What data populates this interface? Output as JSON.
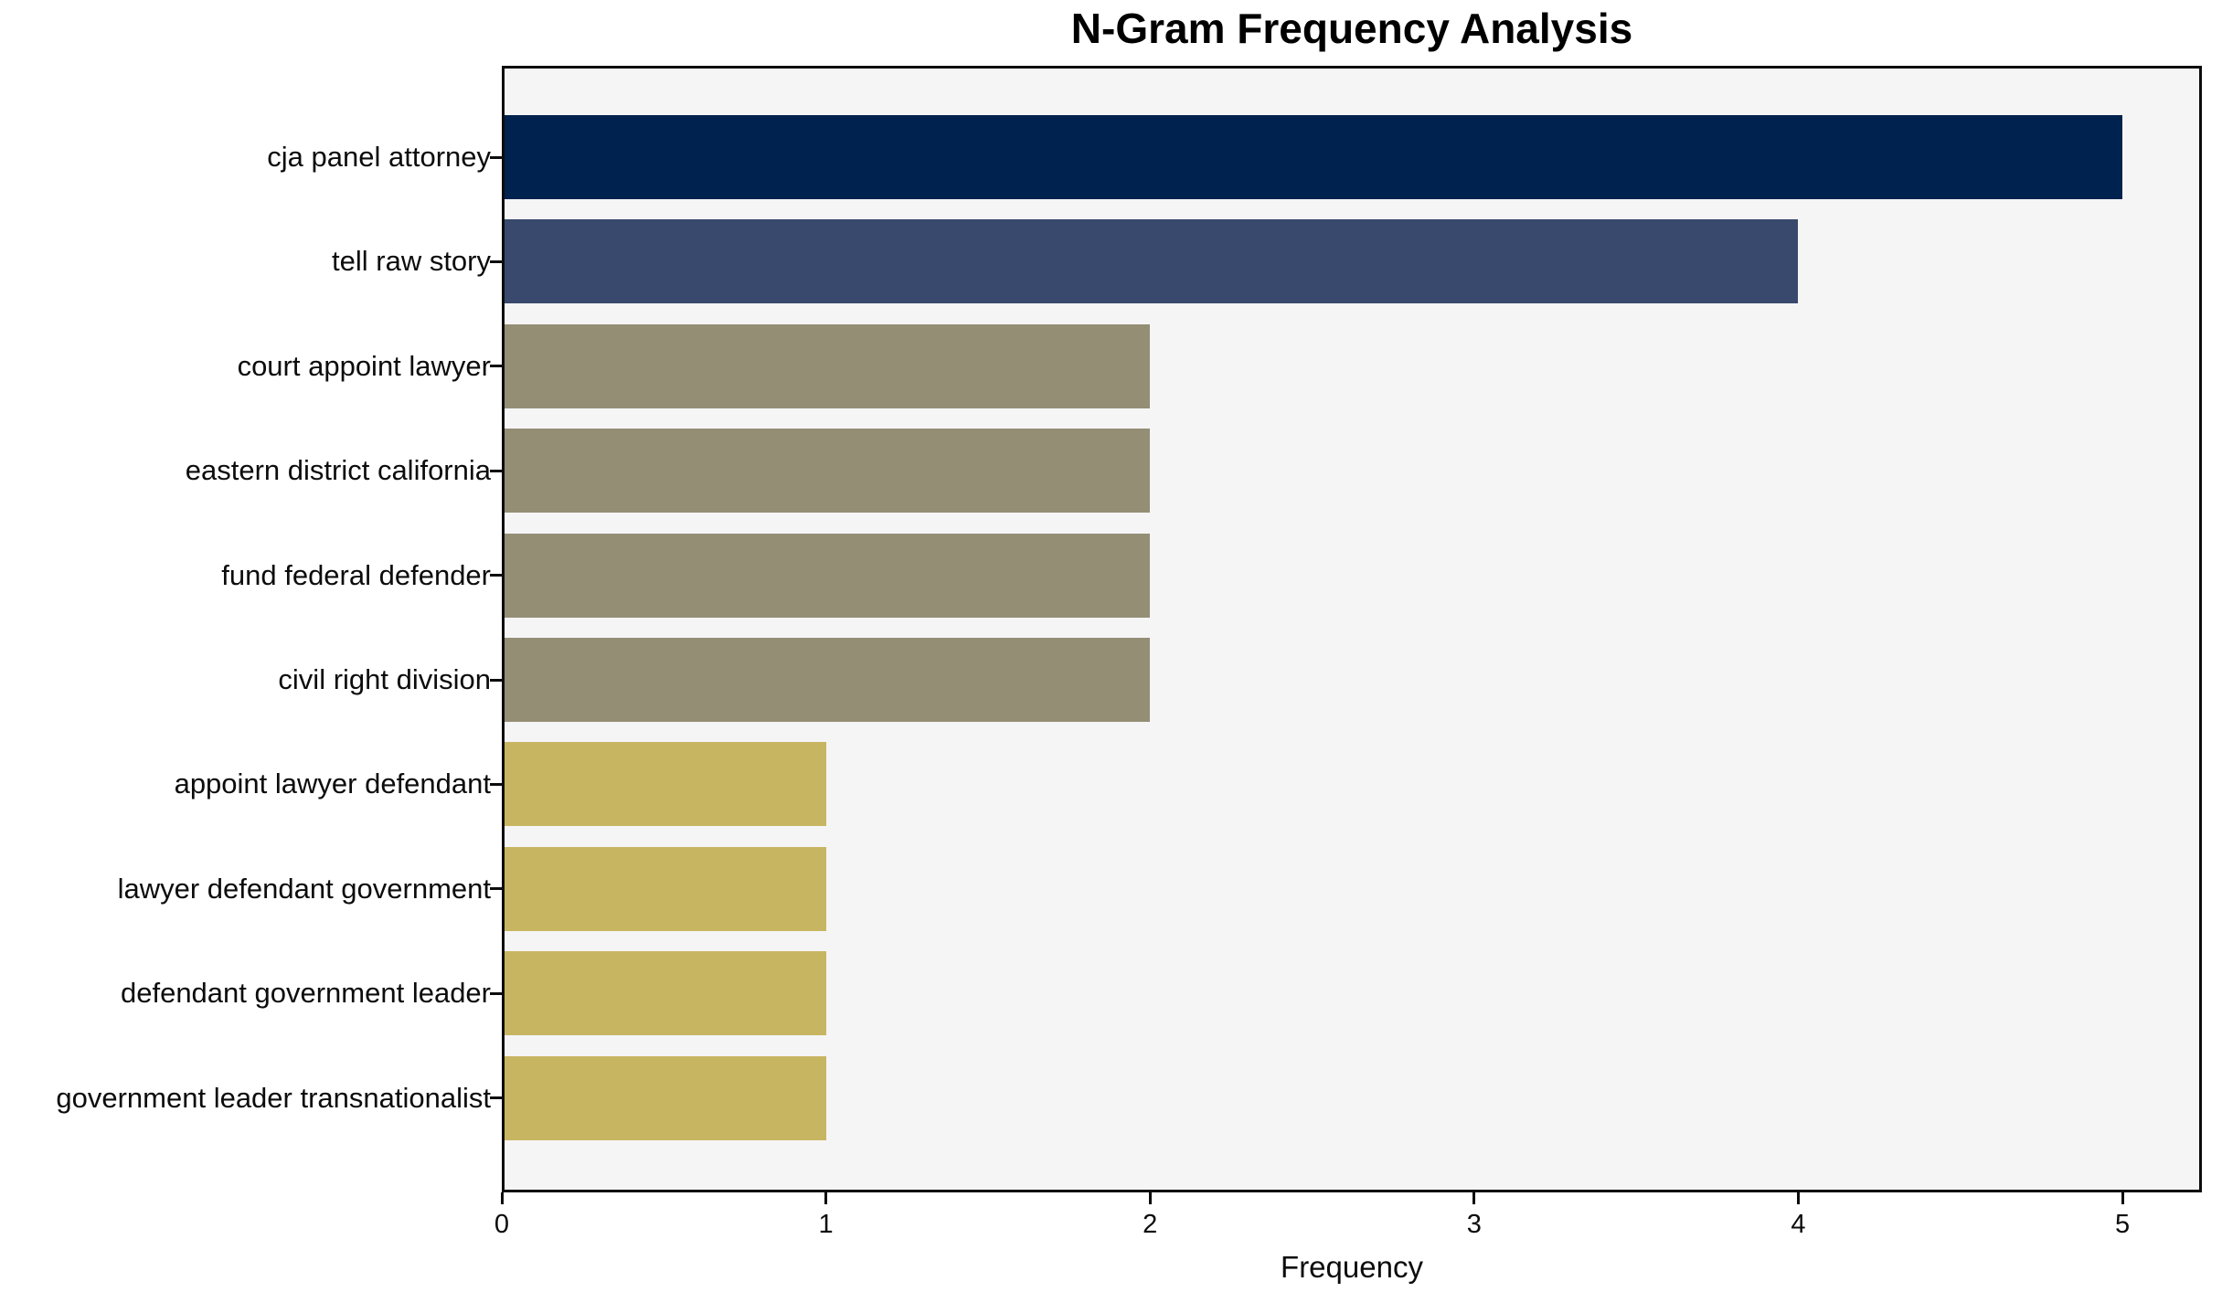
{
  "chart_data": {
    "type": "bar",
    "orientation": "horizontal",
    "title": "N-Gram Frequency Analysis",
    "xlabel": "Frequency",
    "ylabel": "",
    "categories": [
      "cja panel attorney",
      "tell raw story",
      "court appoint lawyer",
      "eastern district california",
      "fund federal defender",
      "civil right division",
      "appoint lawyer defendant",
      "lawyer defendant government",
      "defendant government leader",
      "government leader transnationalist"
    ],
    "values": [
      5,
      4,
      2,
      2,
      2,
      2,
      1,
      1,
      1,
      1
    ],
    "bar_colors": [
      "#00224e",
      "#39496d",
      "#948e75",
      "#948e75",
      "#948e75",
      "#948e75",
      "#c8b562",
      "#c8b562",
      "#c8b562",
      "#c8b562"
    ],
    "xticks": [
      "0",
      "1",
      "2",
      "3",
      "4",
      "5"
    ],
    "xtick_values": [
      0,
      1,
      2,
      3,
      4,
      5
    ],
    "xlim": [
      0,
      5.245
    ],
    "grid": false,
    "legend": null,
    "plot_bg": "#f5f5f6",
    "figure_bg": "#ffffff",
    "axis_color": "#0c0c0c"
  }
}
